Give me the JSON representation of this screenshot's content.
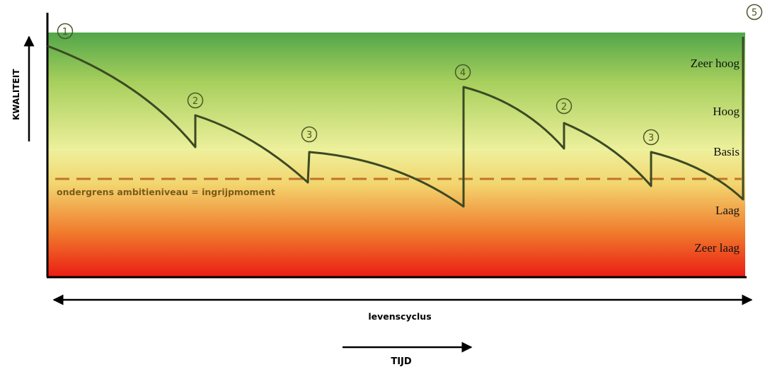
{
  "y_axis": {
    "label": "KWALITEIT"
  },
  "levels": [
    "Zeer hoog",
    "Hoog",
    "Basis",
    "Laag",
    "Zeer laag"
  ],
  "threshold": {
    "label": "ondergrens ambitieniveau = ingrijpmoment"
  },
  "lifecycle": {
    "label": "levenscyclus"
  },
  "time": {
    "label": "TIJD"
  },
  "markers": [
    "1",
    "2",
    "3",
    "4",
    "2",
    "3",
    "5"
  ],
  "colors": {
    "top_green": "#52a64a",
    "upper_green": "#a6cf5c",
    "mid_yellow": "#eef09c",
    "mid_orange": "#f2d56e",
    "lower_orange": "#f07a2c",
    "bottom_red": "#ea1c14",
    "curve": "#3c4a22",
    "threshold": "#c0732a",
    "marker": "#4a5628"
  }
}
